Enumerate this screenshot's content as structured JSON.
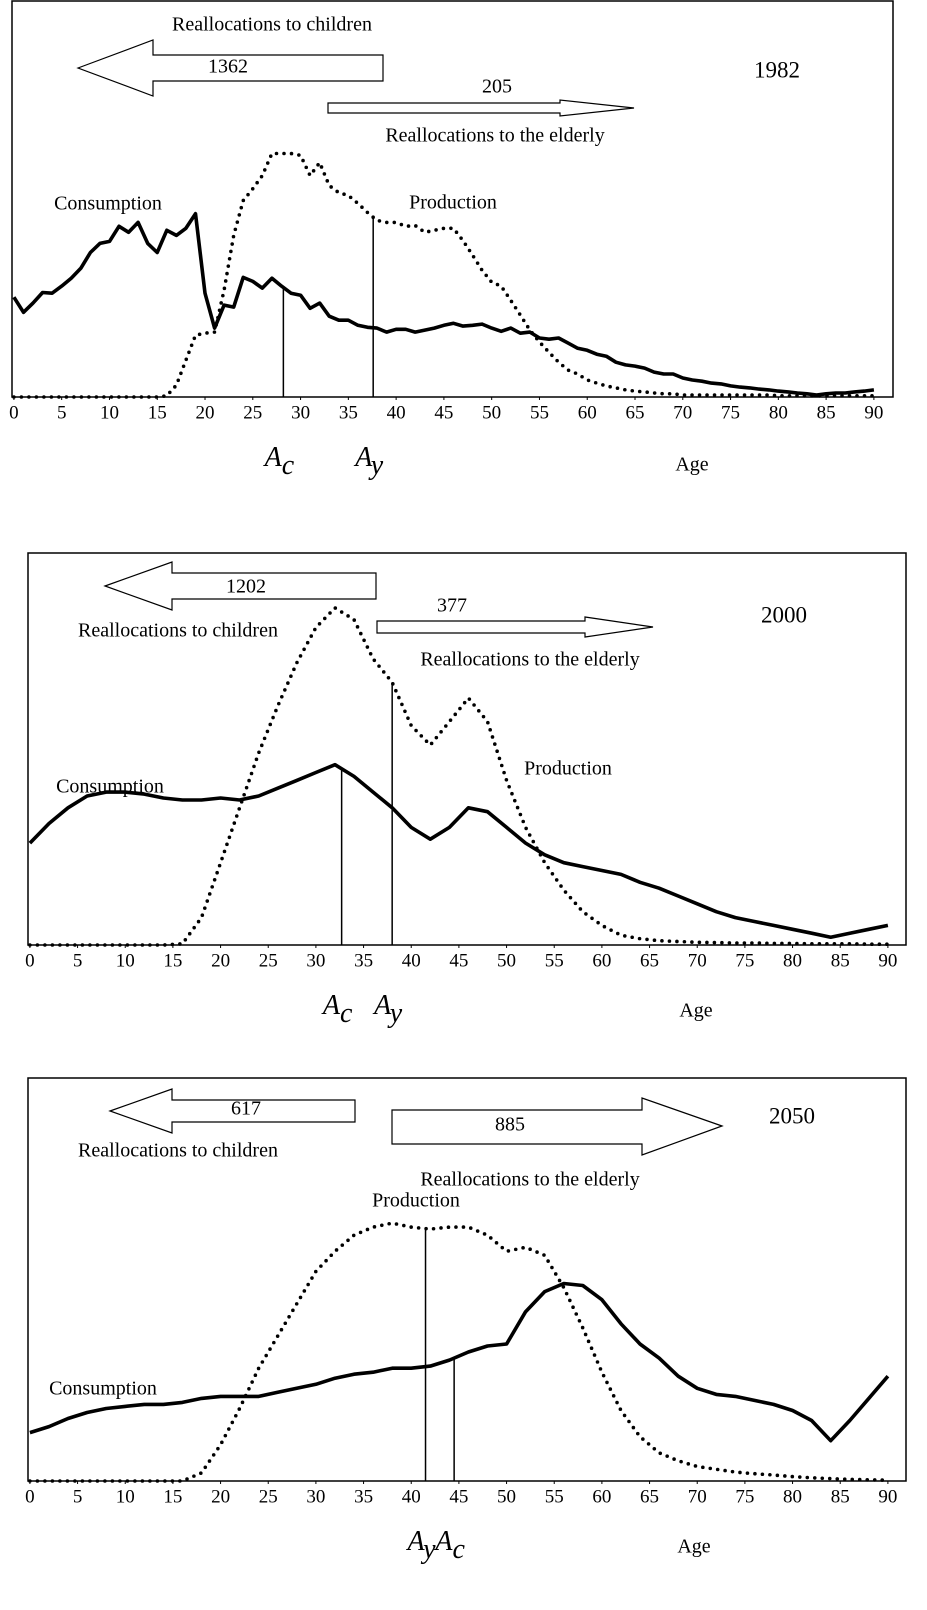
{
  "chart_data": [
    {
      "type": "line",
      "title": "1982",
      "xlabel": "Age",
      "xlim": [
        -0.2,
        92
      ],
      "ylim": [
        0,
        100
      ],
      "xticks": [
        0,
        5,
        10,
        15,
        20,
        25,
        30,
        35,
        40,
        45,
        50,
        55,
        60,
        65,
        70,
        75,
        80,
        85,
        90
      ],
      "x": [
        0,
        1,
        2,
        3,
        4,
        5,
        6,
        7,
        8,
        9,
        10,
        11,
        12,
        13,
        14,
        15,
        16,
        17,
        18,
        19,
        20,
        21,
        22,
        23,
        24,
        25,
        26,
        27,
        28,
        29,
        30,
        31,
        32,
        33,
        34,
        35,
        36,
        37,
        38,
        39,
        40,
        41,
        42,
        43,
        44,
        45,
        46,
        47,
        48,
        49,
        50,
        51,
        52,
        53,
        54,
        55,
        56,
        57,
        58,
        59,
        60,
        61,
        62,
        63,
        64,
        65,
        66,
        67,
        68,
        69,
        70,
        71,
        72,
        73,
        74,
        75,
        76,
        77,
        78,
        79,
        80,
        81,
        82,
        83,
        84,
        85,
        86,
        87,
        88,
        89,
        90
      ],
      "series": [
        {
          "name": "Consumption",
          "color": "#000000",
          "style": "solid",
          "values": [
            25.2,
            21.4,
            23.7,
            26.4,
            26.2,
            28.0,
            30.0,
            32.5,
            36.5,
            38.8,
            39.3,
            43.1,
            41.6,
            44.1,
            38.8,
            36.5,
            42.1,
            40.8,
            42.6,
            46.3,
            26.2,
            17.4,
            23.2,
            22.7,
            30.2,
            29.2,
            27.5,
            30.0,
            28.0,
            26.2,
            25.7,
            22.4,
            23.7,
            20.4,
            19.4,
            19.4,
            18.1,
            17.6,
            17.4,
            16.4,
            17.1,
            17.1,
            16.4,
            16.9,
            17.4,
            18.1,
            18.6,
            17.9,
            18.1,
            18.4,
            17.4,
            16.6,
            17.4,
            16.1,
            16.4,
            14.9,
            14.6,
            14.9,
            13.6,
            12.3,
            11.8,
            10.8,
            10.3,
            8.8,
            8.1,
            7.8,
            7.3,
            6.3,
            5.8,
            5.8,
            4.8,
            4.3,
            4.0,
            3.5,
            3.3,
            2.8,
            2.5,
            2.3,
            2.0,
            1.8,
            1.5,
            1.3,
            1.0,
            0.8,
            0.5,
            0.8,
            1.0,
            1.0,
            1.3,
            1.5,
            1.8
          ]
        },
        {
          "name": "Production",
          "color": "#000000",
          "style": "dotted",
          "values": [
            0,
            0,
            0,
            0,
            0,
            0,
            0,
            0,
            0,
            0,
            0,
            0,
            0,
            0,
            0,
            0,
            0.3,
            3.0,
            9.3,
            15.6,
            16.1,
            16.4,
            27.0,
            40.8,
            49.6,
            52.6,
            55.9,
            61.5,
            61.5,
            61.5,
            61.0,
            55.9,
            59.2,
            53.4,
            51.6,
            50.9,
            48.9,
            46.6,
            44.6,
            44.1,
            44.1,
            43.1,
            43.3,
            41.6,
            42.1,
            42.6,
            42.6,
            39.5,
            35.8,
            32.0,
            29.0,
            28.0,
            24.4,
            20.7,
            16.9,
            13.9,
            11.3,
            8.8,
            6.8,
            5.8,
            4.3,
            3.5,
            2.8,
            2.3,
            1.8,
            1.5,
            1.3,
            1.0,
            0.8,
            0.8,
            0.5,
            0.5,
            0.5,
            0.5,
            0.5,
            0.5,
            0.5,
            0.5,
            0.5,
            0.5,
            0.3,
            0.3,
            0.3,
            0.3,
            0.3,
            0.3,
            0.3,
            0.3,
            0.3,
            0.3,
            0.3
          ]
        }
      ],
      "reallocations": [
        {
          "label": "Reallocations to children",
          "value": 1362
        },
        {
          "label": "Reallocations to the elderly",
          "value": 205
        }
      ],
      "markers": [
        {
          "symbol": "A",
          "subscript": "c",
          "age": 28.2
        },
        {
          "symbol": "A",
          "subscript": "y",
          "age": 37.6
        }
      ]
    },
    {
      "type": "line",
      "title": "2000",
      "xlabel": "Age",
      "xlim": [
        -0.2,
        91.9
      ],
      "ylim": [
        0,
        100
      ],
      "xticks": [
        0,
        5,
        10,
        15,
        20,
        25,
        30,
        35,
        40,
        45,
        50,
        55,
        60,
        65,
        70,
        75,
        80,
        85,
        90
      ],
      "x": [
        0,
        2,
        4,
        6,
        8,
        10,
        12,
        14,
        16,
        18,
        20,
        22,
        24,
        26,
        28,
        30,
        32,
        34,
        36,
        38,
        40,
        42,
        44,
        46,
        48,
        50,
        52,
        54,
        56,
        58,
        60,
        62,
        64,
        66,
        68,
        70,
        72,
        74,
        76,
        78,
        80,
        82,
        84,
        86,
        88,
        90
      ],
      "series": [
        {
          "name": "Consumption",
          "color": "#000000",
          "style": "solid",
          "values": [
            26,
            31,
            35,
            38,
            39,
            39,
            38.5,
            37.5,
            37,
            37,
            37.5,
            37,
            38,
            40,
            42,
            44,
            46,
            43,
            39,
            35,
            30,
            27,
            30,
            35,
            34,
            30,
            26,
            23,
            21,
            20,
            19,
            18,
            16,
            14.5,
            12.5,
            10.5,
            8.5,
            7,
            6,
            5,
            4,
            3,
            2,
            3,
            4,
            5
          ]
        },
        {
          "name": "Production",
          "color": "#000000",
          "style": "dotted",
          "values": [
            0,
            0,
            0,
            0,
            0,
            0,
            0,
            0,
            0.3,
            7,
            21,
            35,
            49,
            61,
            72,
            81,
            86,
            83,
            73,
            67,
            56,
            51,
            57,
            63,
            57,
            42,
            30,
            21,
            14,
            8.5,
            5,
            2.5,
            1.6,
            1.1,
            0.9,
            0.7,
            0.6,
            0.5,
            0.5,
            0.4,
            0.4,
            0.3,
            0.3,
            0.3,
            0.2,
            0.2
          ]
        }
      ],
      "reallocations": [
        {
          "label": "Reallocations to children",
          "value": 1202
        },
        {
          "label": "Reallocations to the elderly",
          "value": 377
        }
      ],
      "markers": [
        {
          "symbol": "A",
          "subscript": "c",
          "age": 32.7
        },
        {
          "symbol": "A",
          "subscript": "y",
          "age": 38
        }
      ]
    },
    {
      "type": "line",
      "title": "2050",
      "xlabel": "Age",
      "xlim": [
        -0.2,
        91.9
      ],
      "ylim": [
        0,
        100
      ],
      "xticks": [
        0,
        5,
        10,
        15,
        20,
        25,
        30,
        35,
        40,
        45,
        50,
        55,
        60,
        65,
        70,
        75,
        80,
        85,
        90
      ],
      "x": [
        0,
        2,
        4,
        6,
        8,
        10,
        12,
        14,
        16,
        18,
        20,
        22,
        24,
        26,
        28,
        30,
        32,
        34,
        36,
        38,
        40,
        42,
        44,
        46,
        48,
        50,
        52,
        54,
        56,
        58,
        60,
        62,
        64,
        66,
        68,
        70,
        72,
        74,
        76,
        78,
        80,
        82,
        84,
        86,
        88,
        90
      ],
      "series": [
        {
          "name": "Consumption",
          "color": "#000000",
          "style": "solid",
          "values": [
            12,
            13.5,
            15.5,
            17,
            18,
            18.5,
            19,
            19,
            19.5,
            20.5,
            21,
            21,
            21,
            22,
            23,
            24,
            25.5,
            26.5,
            27,
            28,
            28,
            28.5,
            30,
            32,
            33.5,
            34,
            42,
            47,
            49,
            48.5,
            45,
            39,
            34,
            30.5,
            26,
            23,
            21.5,
            21,
            20,
            19,
            17.5,
            15,
            10,
            15,
            20.5,
            26
          ]
        },
        {
          "name": "Production",
          "color": "#000000",
          "style": "dotted",
          "values": [
            0,
            0,
            0,
            0,
            0,
            0,
            0,
            0,
            0,
            2,
            9,
            18,
            28,
            36,
            44,
            52,
            57,
            61,
            63,
            64,
            63,
            62.5,
            63,
            63,
            61,
            57,
            58,
            56,
            48,
            38,
            27,
            17.5,
            11,
            7,
            5,
            3.6,
            2.9,
            2.2,
            1.8,
            1.5,
            1.1,
            0.8,
            0.6,
            0.4,
            0.3,
            0.2
          ]
        }
      ],
      "reallocations": [
        {
          "label": "Reallocations to children",
          "value": 617
        },
        {
          "label": "Reallocations to the elderly",
          "value": 885
        }
      ],
      "markers": [
        {
          "symbol": "A",
          "subscript": "y",
          "age": 41.5
        },
        {
          "symbol": "A",
          "subscript": "c",
          "age": 44.5
        }
      ]
    }
  ]
}
